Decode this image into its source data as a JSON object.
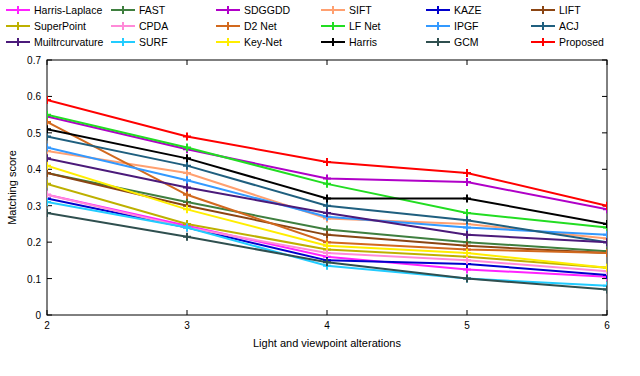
{
  "chart_data": {
    "type": "line",
    "x_label": "Light and viewpoint alterations",
    "y_label": "Matching score",
    "x": [
      2,
      3,
      4,
      5,
      6
    ],
    "xlim": [
      2,
      6
    ],
    "xticks": [
      2,
      3,
      4,
      5,
      6
    ],
    "ylim": [
      0,
      0.7
    ],
    "yticks": [
      0,
      0.1,
      0.2,
      0.3,
      0.4,
      0.5,
      0.6,
      0.7
    ],
    "grid": false,
    "legend": "top",
    "marker": "plus",
    "series": [
      {
        "name": "Harris-Laplace",
        "color": "#ff22ff",
        "values": [
          0.33,
          0.245,
          0.16,
          0.125,
          0.105
        ]
      },
      {
        "name": "FAST",
        "color": "#3f7f3f",
        "values": [
          0.39,
          0.31,
          0.235,
          0.2,
          0.175
        ]
      },
      {
        "name": "SDGGDD",
        "color": "#b000c8",
        "values": [
          0.545,
          0.455,
          0.375,
          0.365,
          0.29
        ]
      },
      {
        "name": "SIFT",
        "color": "#ffa070",
        "values": [
          0.45,
          0.39,
          0.265,
          0.25,
          0.21
        ]
      },
      {
        "name": "KAZE",
        "color": "#0000cc",
        "values": [
          0.32,
          0.24,
          0.15,
          0.14,
          0.11
        ]
      },
      {
        "name": "LIFT",
        "color": "#8b4513",
        "values": [
          0.39,
          0.3,
          0.22,
          0.19,
          0.17
        ]
      },
      {
        "name": "SuperPoint",
        "color": "#bdb000",
        "values": [
          0.36,
          0.25,
          0.18,
          0.16,
          0.13
        ]
      },
      {
        "name": "CPDA",
        "color": "#ff8ad8",
        "values": [
          0.33,
          0.24,
          0.17,
          0.15,
          0.12
        ]
      },
      {
        "name": "D2 Net",
        "color": "#d2691e",
        "values": [
          0.53,
          0.33,
          0.2,
          0.18,
          0.17
        ]
      },
      {
        "name": "LF Net",
        "color": "#22dd22",
        "values": [
          0.55,
          0.46,
          0.36,
          0.28,
          0.24
        ]
      },
      {
        "name": "IPGF",
        "color": "#3399ff",
        "values": [
          0.46,
          0.37,
          0.27,
          0.24,
          0.22
        ]
      },
      {
        "name": "ACJ",
        "color": "#1f5f7f",
        "values": [
          0.49,
          0.41,
          0.3,
          0.26,
          0.2
        ]
      },
      {
        "name": "Muiltrcurvature",
        "color": "#4b1a7a",
        "values": [
          0.43,
          0.35,
          0.28,
          0.22,
          0.2
        ]
      },
      {
        "name": "SURF",
        "color": "#22ccff",
        "values": [
          0.31,
          0.24,
          0.135,
          0.1,
          0.08
        ]
      },
      {
        "name": "Key-Net",
        "color": "#ffee00",
        "values": [
          0.41,
          0.29,
          0.19,
          0.17,
          0.13
        ]
      },
      {
        "name": "Harris",
        "color": "#000000",
        "values": [
          0.51,
          0.43,
          0.32,
          0.32,
          0.25
        ]
      },
      {
        "name": "GCM",
        "color": "#2f4f4f",
        "values": [
          0.28,
          0.215,
          0.145,
          0.1,
          0.07
        ]
      },
      {
        "name": "Proposed",
        "color": "#ff0000",
        "values": [
          0.59,
          0.49,
          0.42,
          0.39,
          0.3
        ]
      }
    ]
  }
}
